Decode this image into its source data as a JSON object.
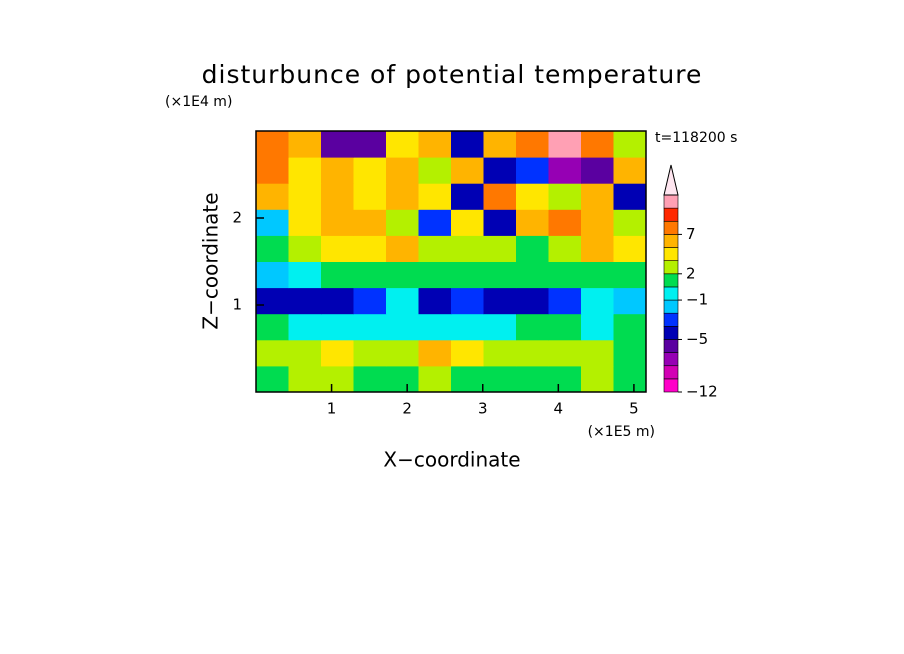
{
  "chart_data": {
    "type": "contour",
    "title": "disturbunce of potential temperature",
    "time_label": "t=118200 s",
    "x_label": "X−coordinate",
    "x_unit": "(×1E5 m)",
    "y_label": "Z−coordinate",
    "y_unit": "(×1E4 m)",
    "xlim": [
      0,
      5.16
    ],
    "ylim": [
      0,
      3
    ],
    "xticks": [
      1,
      2,
      3,
      4,
      5
    ],
    "yticks": [
      1,
      2
    ],
    "z": [
      [
        1,
        2,
        2,
        1,
        1,
        2,
        1,
        0,
        1,
        1,
        2,
        1
      ],
      [
        3,
        2,
        4,
        3,
        3,
        5,
        4,
        2,
        3,
        3,
        3,
        1
      ],
      [
        0,
        -1,
        -1,
        -1,
        -1,
        -1,
        -1,
        -1,
        0,
        0,
        -1,
        0
      ],
      [
        -4,
        -4,
        -4,
        -3,
        -1,
        -4,
        -3,
        -4,
        -4,
        -3,
        -1,
        -2
      ],
      [
        -2,
        -1,
        0,
        1,
        1,
        0,
        1,
        1,
        0,
        1,
        0,
        1
      ],
      [
        1,
        3,
        4,
        4,
        5,
        3,
        2,
        3,
        0,
        2,
        5,
        4
      ],
      [
        -2,
        4,
        5,
        5,
        3,
        -3,
        4,
        -4,
        5,
        7,
        5,
        3
      ],
      [
        5,
        4,
        5,
        4,
        5,
        4,
        -4,
        7,
        4,
        3,
        5,
        -4
      ],
      [
        8,
        4,
        5,
        4,
        5,
        3,
        6,
        -4,
        -3,
        -7,
        -6,
        6
      ],
      [
        7,
        5,
        -6,
        -6,
        4,
        5,
        -4,
        6,
        7,
        12,
        8,
        3
      ]
    ],
    "levels": [
      -12,
      -10,
      -8,
      -6,
      -5,
      -3,
      -2,
      -1,
      0,
      2,
      4,
      5,
      7,
      9,
      11,
      13
    ],
    "level_colors": [
      "#ff00c8",
      "#d200b4",
      "#9600b4",
      "#5a00a0",
      "#0000b4",
      "#0032ff",
      "#00c8ff",
      "#00f0f0",
      "#00dc50",
      "#b4f000",
      "#ffe600",
      "#ffb400",
      "#ff7800",
      "#ff2800",
      "#ffa0b4"
    ],
    "extend_color": "#ffe6f0",
    "colorbar_ticks": [
      {
        "value": -12,
        "label": "−12"
      },
      {
        "value": -5,
        "label": "−5"
      },
      {
        "value": -1,
        "label": "−1"
      },
      2,
      7
    ]
  }
}
